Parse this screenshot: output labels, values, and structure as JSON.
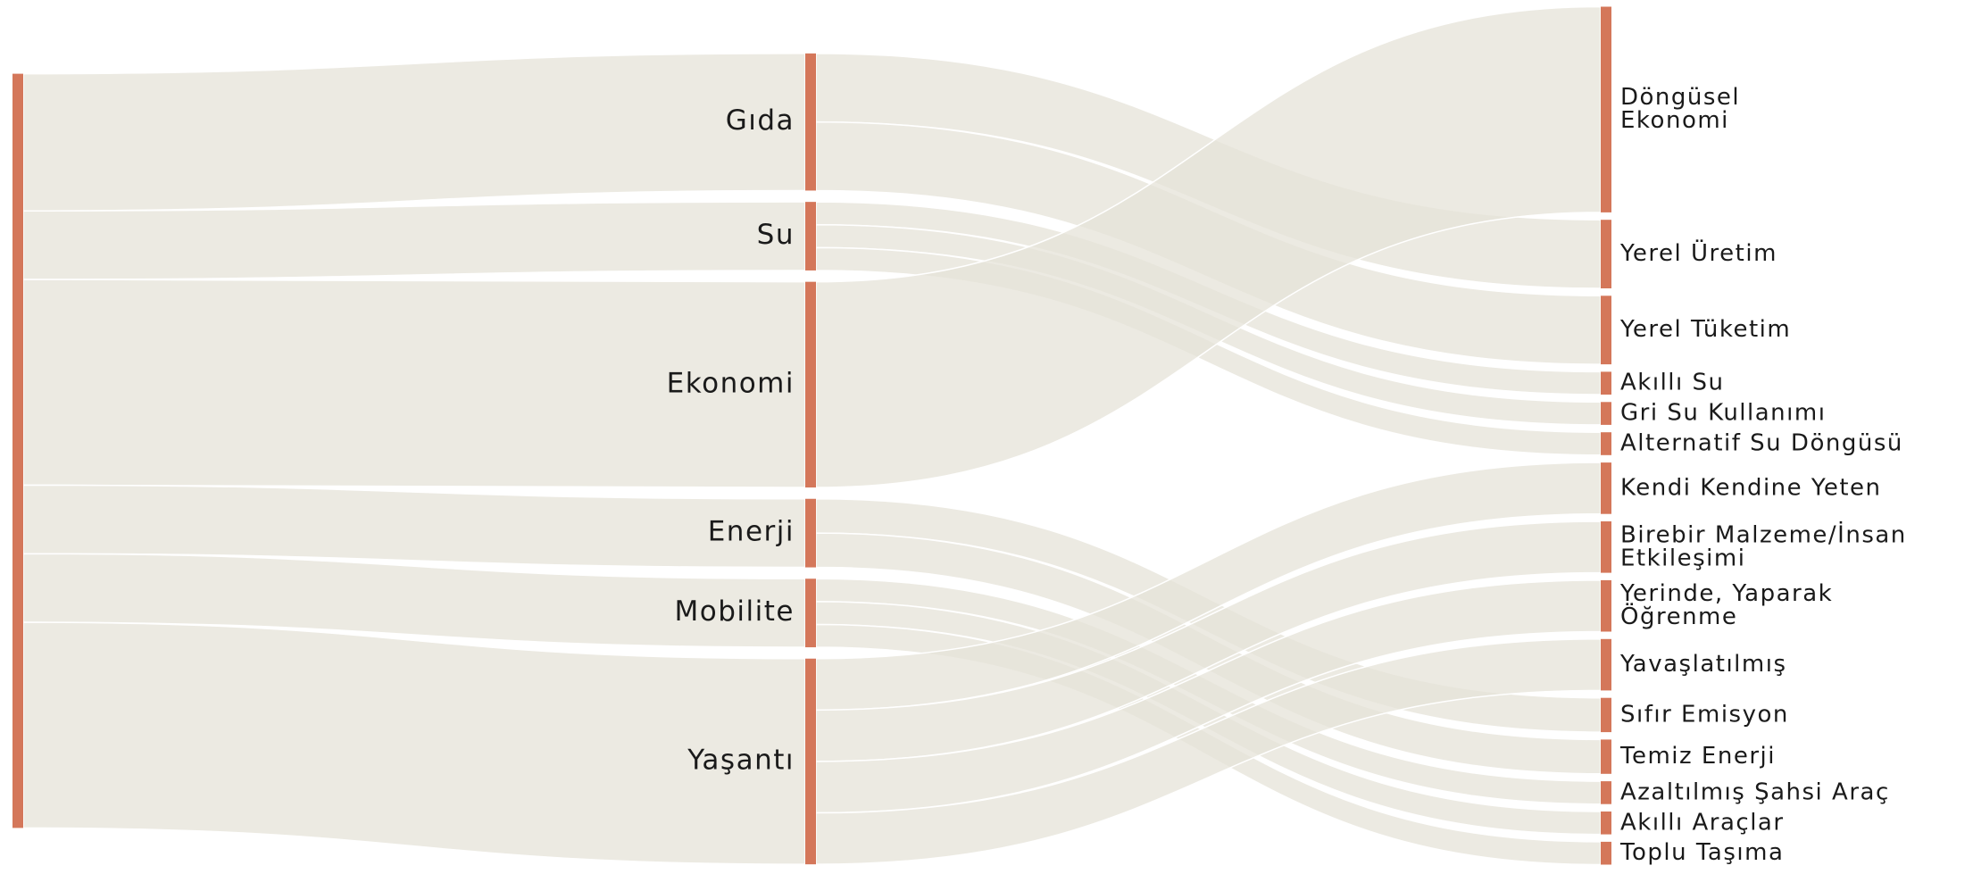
{
  "chart_data": {
    "type": "sankey",
    "node_color": "#d4775a",
    "link_color": "#e6e3d8",
    "nodes": [
      {},
      {
        "label": [
          "Gıda"
        ]
      },
      {
        "label": [
          "Su"
        ]
      },
      {
        "label": [
          "Ekonomi"
        ]
      },
      {
        "label": [
          "Enerji"
        ]
      },
      {
        "label": [
          "Mobilite"
        ]
      },
      {
        "label": [
          "Yaşantı"
        ]
      },
      {
        "label": [
          "Döngüsel",
          "Ekonomi"
        ]
      },
      {
        "label": [
          "Yerel Üretim"
        ]
      },
      {
        "label": [
          "Yerel Tüketim"
        ]
      },
      {
        "label": [
          "Akıllı Su"
        ]
      },
      {
        "label": [
          "Gri Su Kullanımı"
        ]
      },
      {
        "label": [
          "Alternatif Su Döngüsü"
        ]
      },
      {
        "label": [
          "Kendi Kendine Yeten"
        ]
      },
      {
        "label": [
          "Birebir Malzeme/İnsan",
          "Etkileşimi"
        ]
      },
      {
        "label": [
          "Yerinde, Yaparak",
          "Öğrenme"
        ]
      },
      {
        "label": [
          "Yavaşlatılmış"
        ]
      },
      {
        "label": [
          "Sıfır Emisyon"
        ]
      },
      {
        "label": [
          "Temiz Enerji"
        ]
      },
      {
        "label": [
          "Azaltılmış Şahsi Araç"
        ]
      },
      {
        "label": [
          "Akıllı Araçlar"
        ]
      },
      {
        "label": [
          "Toplu Taşıma"
        ]
      }
    ],
    "links": [
      {
        "source": 0,
        "target": 1,
        "value": 6
      },
      {
        "source": 0,
        "target": 2,
        "value": 3
      },
      {
        "source": 0,
        "target": 3,
        "value": 9
      },
      {
        "source": 0,
        "target": 4,
        "value": 3
      },
      {
        "source": 0,
        "target": 5,
        "value": 3
      },
      {
        "source": 0,
        "target": 6,
        "value": 9
      },
      {
        "source": 1,
        "target": 8,
        "value": 3
      },
      {
        "source": 1,
        "target": 9,
        "value": 3
      },
      {
        "source": 2,
        "target": 10,
        "value": 1
      },
      {
        "source": 2,
        "target": 11,
        "value": 1
      },
      {
        "source": 2,
        "target": 12,
        "value": 1
      },
      {
        "source": 3,
        "target": 7,
        "value": 9
      },
      {
        "source": 4,
        "target": 17,
        "value": 1.5
      },
      {
        "source": 4,
        "target": 18,
        "value": 1.5
      },
      {
        "source": 5,
        "target": 19,
        "value": 1
      },
      {
        "source": 5,
        "target": 20,
        "value": 1
      },
      {
        "source": 5,
        "target": 21,
        "value": 1
      },
      {
        "source": 6,
        "target": 13,
        "value": 2.25
      },
      {
        "source": 6,
        "target": 14,
        "value": 2.25
      },
      {
        "source": 6,
        "target": 15,
        "value": 2.25
      },
      {
        "source": 6,
        "target": 16,
        "value": 2.25
      }
    ]
  }
}
